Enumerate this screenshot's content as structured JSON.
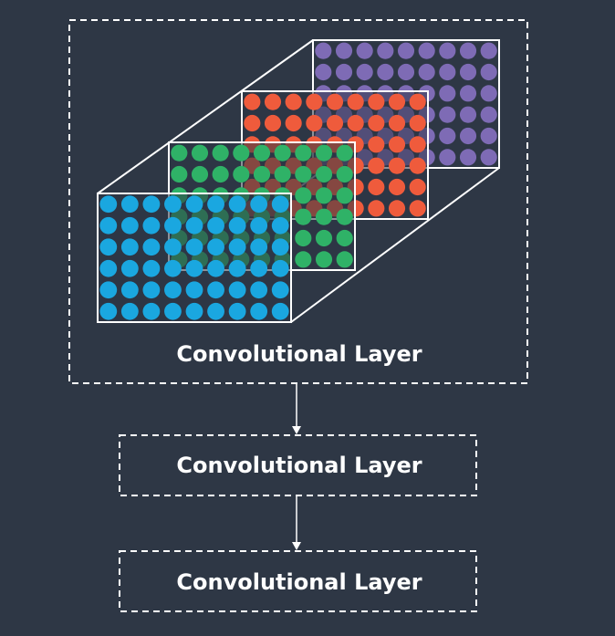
{
  "diagram": {
    "title_main": "Convolutional Layer",
    "layer_2_label": "Convolutional Layer",
    "layer_3_label": "Convolutional Layer",
    "colors": {
      "background": "#2e3745",
      "outline": "#ffffff",
      "plane_fill": "#2e3745"
    },
    "feature_maps": [
      {
        "name": "purple-map",
        "color": "#7e6bb5",
        "rows": 6,
        "cols": 9
      },
      {
        "name": "red-map",
        "color": "#ef5b3c",
        "rows": 6,
        "cols": 9
      },
      {
        "name": "green-map",
        "color": "#2fb267",
        "rows": 6,
        "cols": 9
      },
      {
        "name": "blue-map",
        "color": "#1aa7e0",
        "rows": 6,
        "cols": 9
      }
    ]
  }
}
